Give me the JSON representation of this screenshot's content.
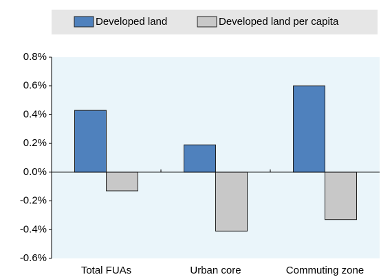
{
  "chart_data": {
    "type": "bar",
    "categories": [
      "Total FUAs",
      "Urban core",
      "Commuting zone"
    ],
    "series": [
      {
        "name": "Developed land",
        "color": "#4f81bd",
        "values": [
          0.43,
          0.19,
          0.6
        ]
      },
      {
        "name": "Developed land per capita",
        "color": "#c8c8c8",
        "values": [
          -0.13,
          -0.41,
          -0.33
        ]
      }
    ],
    "ylim": [
      -0.6,
      0.8
    ],
    "yticks": [
      {
        "value": -0.6,
        "label": "-0.6%"
      },
      {
        "value": -0.4,
        "label": "-0.4%"
      },
      {
        "value": -0.2,
        "label": "-0.2%"
      },
      {
        "value": 0,
        "label": "0.0%"
      },
      {
        "value": 0.2,
        "label": "0.2%"
      },
      {
        "value": 0.4,
        "label": "0.4%"
      },
      {
        "value": 0.6,
        "label": "0.6%"
      },
      {
        "value": 0.8,
        "label": "0.8%"
      }
    ]
  }
}
